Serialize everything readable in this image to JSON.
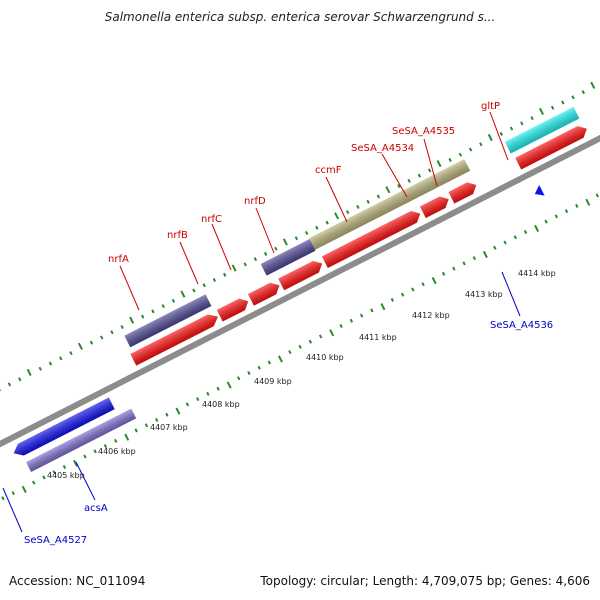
{
  "header": {
    "title": "Salmonella enterica subsp. enterica serovar Schwarzengrund s..."
  },
  "footer": {
    "accession": "Accession: NC_011094",
    "topology": "Topology: circular; Length: 4,709,075 bp; Genes: 4,606"
  },
  "colors": {
    "forward_label": "#cc0000",
    "reverse_label": "#0000cc",
    "cds_red": "#ff1111",
    "cds_blue": "#1111ee",
    "cds_purple": "#504896",
    "cds_lavender": "#8070d0",
    "cds_olive": "#b8b47c",
    "cds_cyan": "#22eeee",
    "cds_grey": "#c8c8c8",
    "backbone": "#8c8c8c",
    "ticks": "#2a8a2a"
  },
  "scale": {
    "tick_labels": [
      "4405 kbp",
      "4406 kbp",
      "4407 kbp",
      "4408 kbp",
      "4409 kbp",
      "4410 kbp",
      "4411 kbp",
      "4412 kbp",
      "4413 kbp",
      "4414 kbp"
    ]
  },
  "gene_labels": {
    "nrfA": "nrfA",
    "nrfB": "nrfB",
    "nrfC": "nrfC",
    "nrfD": "nrfD",
    "ccmF": "ccmF",
    "SeSA_A4534": "SeSA_A4534",
    "SeSA_A4535": "SeSA_A4535",
    "gltP": "gltP",
    "SeSA_A4536": "SeSA_A4536",
    "acsA": "acsA",
    "SeSA_A4527": "SeSA_A4527"
  }
}
